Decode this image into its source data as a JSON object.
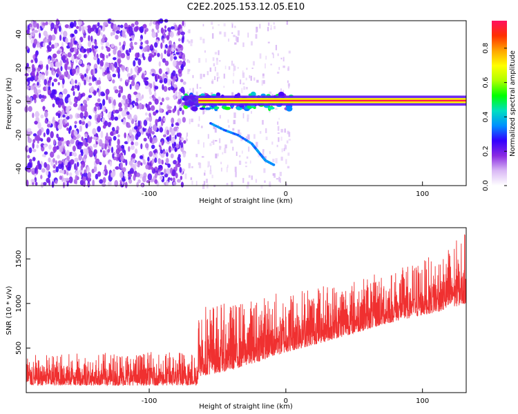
{
  "title": "C2E2.2025.153.12.05.E10",
  "chart_data": [
    {
      "type": "heatmap",
      "xlabel": "Height of straight line (km)",
      "ylabel": "Frequency (Hz)",
      "xlim": [
        -190,
        132
      ],
      "ylim": [
        -50,
        48
      ],
      "x_ticks": [
        -100,
        0,
        100
      ],
      "x_tick_labels": [
        "-100",
        "0",
        "100"
      ],
      "y_ticks": [
        -40,
        -20,
        0,
        20,
        40
      ],
      "y_tick_labels": [
        "-40",
        "-20",
        "0",
        "20",
        "40"
      ],
      "colorbar": {
        "label": "Normalized spectral amplitude",
        "range": [
          0,
          0.96
        ],
        "ticks": [
          0.0,
          0.2,
          0.4,
          0.6,
          0.8
        ],
        "tick_labels": [
          "0.0",
          "0.2",
          "0.4",
          "0.6",
          "0.8"
        ],
        "colors": [
          "#ffffff",
          "#d9b8f5",
          "#8a2be2",
          "#3300ff",
          "#0090ff",
          "#00e0c0",
          "#00ff00",
          "#b0ff00",
          "#ffff00",
          "#ffa500",
          "#ff3000",
          "#ff1060"
        ]
      },
      "features": {
        "noise_region_x": [
          -190,
          -74
        ],
        "sparse_region_x": [
          -74,
          2
        ],
        "carrier_line": {
          "x": [
            -74,
            132
          ],
          "frequency": 0.5,
          "amplitude_core": 0.95
        },
        "turbulent_segment": {
          "x": [
            -75,
            5
          ],
          "frequency": 0,
          "amplitude": 0.45
        },
        "descending_echo": {
          "points": [
            [
              -55,
              -13
            ],
            [
              -45,
              -17
            ],
            [
              -35,
              -20
            ],
            [
              -25,
              -25
            ],
            [
              -20,
              -30
            ],
            [
              -15,
              -35
            ],
            [
              -8,
              -38
            ]
          ],
          "amplitude": 0.3
        }
      }
    },
    {
      "type": "line",
      "color": "#f03030",
      "xlabel": "Height of straight line (km)",
      "ylabel": "SNR (10 * v/v)",
      "xlim": [
        -190,
        132
      ],
      "ylim": [
        0,
        1850
      ],
      "x_ticks": [
        -100,
        0,
        100
      ],
      "x_tick_labels": [
        "-100",
        "0",
        "100"
      ],
      "y_ticks": [
        500,
        1000,
        1500
      ],
      "y_tick_labels": [
        "500",
        "1000",
        "1500"
      ],
      "envelope": {
        "x": [
          -190,
          -65,
          -64,
          -40,
          0,
          40,
          80,
          110,
          132
        ],
        "floor": [
          80,
          80,
          180,
          250,
          450,
          620,
          800,
          900,
          1000
        ],
        "peak": [
          430,
          470,
          1050,
          1000,
          1150,
          1250,
          1380,
          1550,
          1800
        ]
      }
    }
  ]
}
